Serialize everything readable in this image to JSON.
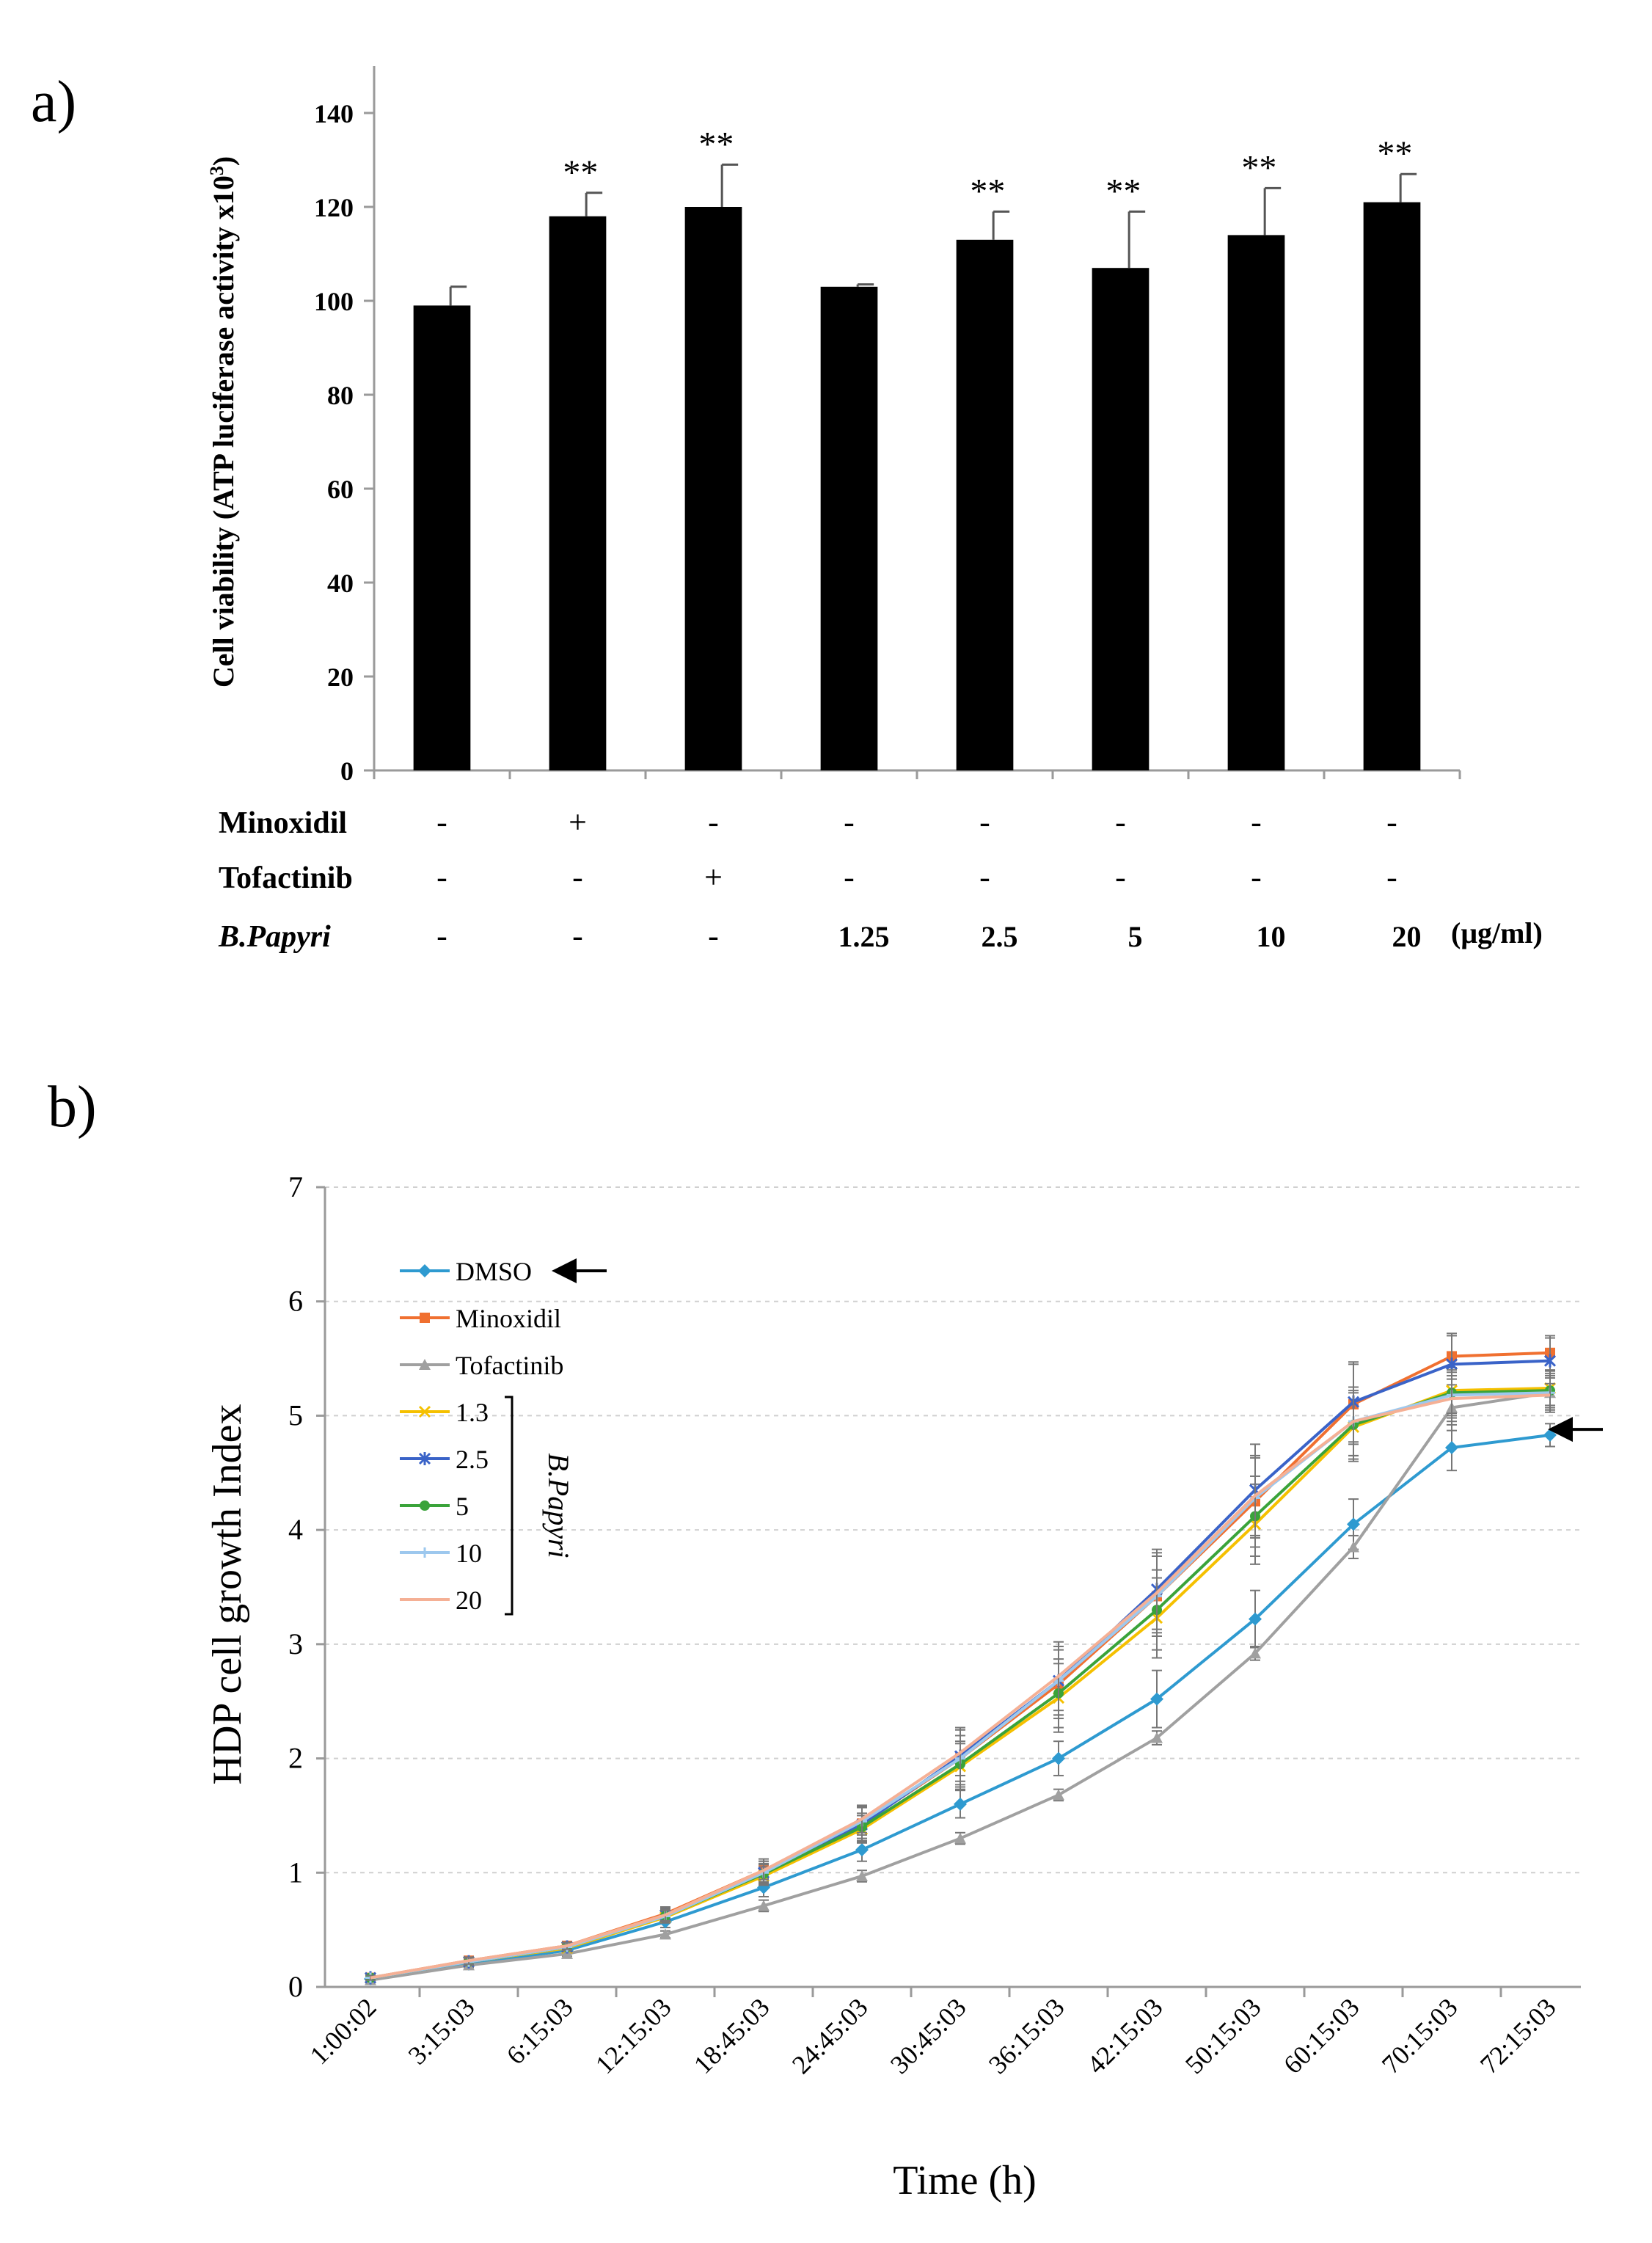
{
  "chart_data": [
    {
      "panel_label": "a)",
      "type": "bar",
      "title": "",
      "ylabel": "Cell viability (ATP luciferase activity x10",
      "ylabel_sup": "3",
      "ylabel_close": ")",
      "ylim": [
        0,
        150
      ],
      "yticks": [
        0,
        20,
        40,
        60,
        80,
        100,
        120,
        140
      ],
      "bar_color": "#000000",
      "bars": [
        {
          "value": 99,
          "error": 4,
          "sig": ""
        },
        {
          "value": 118,
          "error": 5,
          "sig": "**"
        },
        {
          "value": 120,
          "error": 9,
          "sig": "**"
        },
        {
          "value": 103,
          "error": 0.5,
          "sig": ""
        },
        {
          "value": 113,
          "error": 6,
          "sig": "**"
        },
        {
          "value": 107,
          "error": 12,
          "sig": "**"
        },
        {
          "value": 114,
          "error": 10,
          "sig": "**"
        },
        {
          "value": 121,
          "error": 6,
          "sig": "**"
        }
      ],
      "condition_rows": [
        {
          "label": "Minoxidil",
          "italic": false,
          "values": [
            "-",
            "+",
            "-",
            "-",
            "-",
            "-",
            "-",
            "-"
          ]
        },
        {
          "label": "Tofactinib",
          "italic": false,
          "values": [
            "-",
            "-",
            "+",
            "-",
            "-",
            "-",
            "-",
            "-"
          ]
        },
        {
          "label": "B.Papyri",
          "italic": true,
          "values": [
            "-",
            "-",
            "-",
            "1.25",
            "2.5",
            "5",
            "10",
            "20"
          ]
        }
      ],
      "unit_label": "(μg/ml)"
    },
    {
      "panel_label": "b)",
      "type": "line",
      "xlabel": "Time (h)",
      "ylabel": "HDP cell growth Index",
      "ylim": [
        0,
        7
      ],
      "yticks": [
        0,
        1,
        2,
        3,
        4,
        5,
        6,
        7
      ],
      "categories": [
        "1:00:02",
        "3:15:03",
        "6:15:03",
        "12:15:03",
        "18:45:03",
        "24:45:03",
        "30:45:03",
        "36:15:03",
        "42:15:03",
        "50:15:03",
        "60:15:03",
        "70:15:03",
        "72:15:03"
      ],
      "series": [
        {
          "name": "DMSO",
          "color": "#2E9AD0",
          "marker": "diamond",
          "values": [
            0.07,
            0.2,
            0.32,
            0.57,
            0.87,
            1.2,
            1.6,
            2.0,
            2.52,
            3.22,
            4.05,
            4.72,
            4.83
          ],
          "errors": [
            0.02,
            0.02,
            0.03,
            0.05,
            0.08,
            0.1,
            0.12,
            0.15,
            0.25,
            0.25,
            0.22,
            0.2,
            0.1
          ]
        },
        {
          "name": "Minoxidil",
          "color": "#F07030",
          "marker": "square",
          "values": [
            0.08,
            0.23,
            0.36,
            0.64,
            1.02,
            1.43,
            2.0,
            2.65,
            3.42,
            4.25,
            5.1,
            5.52,
            5.55
          ],
          "errors": [
            0.02,
            0.03,
            0.03,
            0.06,
            0.1,
            0.15,
            0.25,
            0.3,
            0.35,
            0.4,
            0.35,
            0.2,
            0.15
          ]
        },
        {
          "name": "Tofactinib",
          "color": "#A0A0A0",
          "marker": "triangle",
          "values": [
            0.06,
            0.19,
            0.29,
            0.46,
            0.71,
            0.97,
            1.3,
            1.68,
            2.18,
            2.92,
            3.85,
            5.07,
            5.2
          ],
          "errors": [
            0.02,
            0.02,
            0.02,
            0.03,
            0.05,
            0.05,
            0.05,
            0.05,
            0.06,
            0.06,
            0.1,
            0.2,
            0.15
          ]
        },
        {
          "name": "1.3",
          "color": "#F5C000",
          "marker": "x",
          "values": [
            0.08,
            0.22,
            0.34,
            0.61,
            0.97,
            1.38,
            1.93,
            2.53,
            3.23,
            4.05,
            4.9,
            5.22,
            5.24
          ],
          "errors": [
            0.02,
            0.03,
            0.03,
            0.05,
            0.08,
            0.12,
            0.2,
            0.3,
            0.35,
            0.35,
            0.3,
            0.2,
            0.15
          ]
        },
        {
          "name": "2.5",
          "color": "#3A63C8",
          "marker": "star",
          "values": [
            0.08,
            0.22,
            0.35,
            0.63,
            1.0,
            1.42,
            2.02,
            2.68,
            3.48,
            4.35,
            5.12,
            5.45,
            5.48
          ],
          "errors": [
            0.02,
            0.03,
            0.03,
            0.06,
            0.1,
            0.15,
            0.25,
            0.3,
            0.35,
            0.4,
            0.35,
            0.25,
            0.2
          ]
        },
        {
          "name": "5",
          "color": "#3AA33A",
          "marker": "circle",
          "values": [
            0.08,
            0.22,
            0.35,
            0.62,
            0.99,
            1.4,
            1.95,
            2.57,
            3.3,
            4.12,
            4.92,
            5.2,
            5.22
          ],
          "errors": [
            0.02,
            0.03,
            0.03,
            0.05,
            0.08,
            0.12,
            0.2,
            0.3,
            0.35,
            0.35,
            0.3,
            0.2,
            0.15
          ]
        },
        {
          "name": "10",
          "color": "#9DC8EE",
          "marker": "plus",
          "values": [
            0.08,
            0.22,
            0.35,
            0.62,
            1.0,
            1.45,
            2.0,
            2.68,
            3.42,
            4.28,
            4.95,
            5.18,
            5.2
          ],
          "errors": [
            0.02,
            0.03,
            0.03,
            0.05,
            0.08,
            0.12,
            0.2,
            0.3,
            0.35,
            0.35,
            0.3,
            0.2,
            0.15
          ]
        },
        {
          "name": "20",
          "color": "#F5B095",
          "marker": "none",
          "values": [
            0.08,
            0.23,
            0.36,
            0.63,
            1.02,
            1.47,
            2.05,
            2.72,
            3.45,
            4.3,
            4.95,
            5.15,
            5.18
          ],
          "errors": [
            0.02,
            0.03,
            0.03,
            0.05,
            0.08,
            0.12,
            0.2,
            0.3,
            0.35,
            0.35,
            0.3,
            0.2,
            0.15
          ]
        }
      ],
      "legend": {
        "position": "top-left",
        "bracket_label": "B.Papyri"
      }
    }
  ]
}
